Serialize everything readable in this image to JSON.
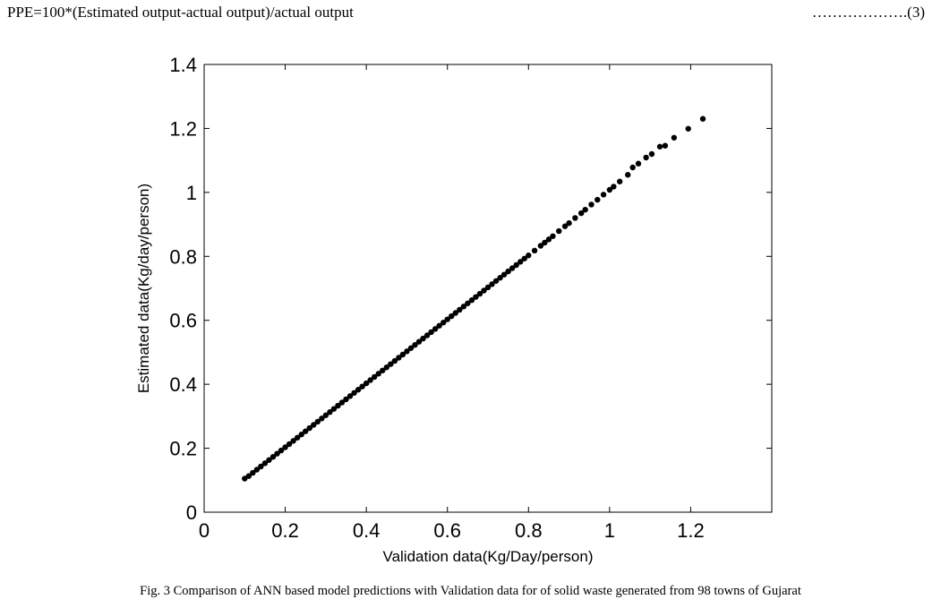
{
  "equation": {
    "text": "PPE=100*(Estimated output-actual output)/actual output",
    "number": "……………….(3)"
  },
  "caption": "Fig. 3 Comparison of ANN based model predictions with Validation data for of solid waste generated from 98 towns of Gujarat",
  "chart_data": {
    "type": "scatter",
    "title": "",
    "xlabel": "Validation data(Kg/Day/person)",
    "ylabel": "Estimated data(Kg/day/person)",
    "xlim": [
      0,
      1.4
    ],
    "ylim": [
      0,
      1.4
    ],
    "xticks": [
      0,
      0.2,
      0.4,
      0.6,
      0.8,
      1,
      1.2
    ],
    "xtick_labels": [
      "0",
      "0.2",
      "0.4",
      "0.6",
      "0.8",
      "1",
      "1.2"
    ],
    "yticks": [
      0,
      0.2,
      0.4,
      0.6,
      0.8,
      1,
      1.2,
      1.4
    ],
    "ytick_labels": [
      "0",
      "0.2",
      "0.4",
      "0.6",
      "0.8",
      "1",
      "1.2",
      "1.4"
    ],
    "grid": false,
    "marker_color": "#000000",
    "x": [
      0.1,
      0.11,
      0.12,
      0.13,
      0.14,
      0.15,
      0.16,
      0.17,
      0.18,
      0.19,
      0.2,
      0.21,
      0.22,
      0.23,
      0.24,
      0.25,
      0.26,
      0.27,
      0.28,
      0.29,
      0.3,
      0.31,
      0.32,
      0.33,
      0.34,
      0.35,
      0.36,
      0.37,
      0.38,
      0.39,
      0.4,
      0.41,
      0.42,
      0.43,
      0.44,
      0.45,
      0.46,
      0.47,
      0.48,
      0.49,
      0.5,
      0.51,
      0.52,
      0.53,
      0.54,
      0.55,
      0.56,
      0.57,
      0.58,
      0.59,
      0.6,
      0.61,
      0.62,
      0.63,
      0.64,
      0.65,
      0.66,
      0.67,
      0.68,
      0.69,
      0.7,
      0.71,
      0.72,
      0.73,
      0.74,
      0.75,
      0.76,
      0.77,
      0.78,
      0.79,
      0.8,
      0.815,
      0.83,
      0.84,
      0.85,
      0.86,
      0.875,
      0.89,
      0.9,
      0.915,
      0.93,
      0.94,
      0.955,
      0.97,
      0.985,
      1.0,
      1.01,
      1.025,
      1.045,
      1.057,
      1.071,
      1.09,
      1.104,
      1.124,
      1.137,
      1.159,
      1.194,
      1.23
    ],
    "y": [
      0.105,
      0.113,
      0.123,
      0.133,
      0.143,
      0.153,
      0.163,
      0.173,
      0.183,
      0.193,
      0.203,
      0.213,
      0.223,
      0.233,
      0.243,
      0.253,
      0.263,
      0.273,
      0.283,
      0.293,
      0.303,
      0.313,
      0.323,
      0.333,
      0.343,
      0.353,
      0.363,
      0.373,
      0.383,
      0.393,
      0.403,
      0.413,
      0.423,
      0.433,
      0.443,
      0.453,
      0.463,
      0.473,
      0.483,
      0.493,
      0.503,
      0.513,
      0.523,
      0.533,
      0.543,
      0.553,
      0.563,
      0.573,
      0.583,
      0.593,
      0.603,
      0.613,
      0.623,
      0.633,
      0.643,
      0.653,
      0.663,
      0.673,
      0.683,
      0.693,
      0.703,
      0.713,
      0.723,
      0.733,
      0.743,
      0.753,
      0.763,
      0.773,
      0.783,
      0.793,
      0.803,
      0.818,
      0.833,
      0.843,
      0.853,
      0.863,
      0.879,
      0.894,
      0.904,
      0.92,
      0.935,
      0.946,
      0.962,
      0.977,
      0.993,
      1.008,
      1.018,
      1.034,
      1.055,
      1.078,
      1.09,
      1.109,
      1.12,
      1.143,
      1.146,
      1.171,
      1.199,
      1.23
    ]
  }
}
